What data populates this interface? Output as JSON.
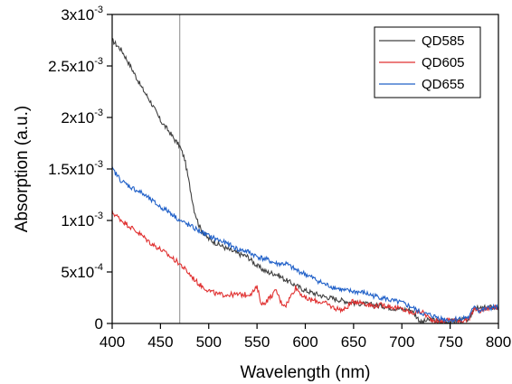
{
  "chart_data": {
    "type": "line",
    "title": "",
    "xlabel": "Wavelength (nm)",
    "ylabel": "Absorption (a.u.)",
    "xlim": [
      400,
      800
    ],
    "ylim": [
      0,
      0.003
    ],
    "xticks": [
      400,
      450,
      500,
      550,
      600,
      650,
      700,
      750,
      800
    ],
    "xtick_labels": [
      "400",
      "450",
      "500",
      "550",
      "600",
      "650",
      "700",
      "750",
      "800"
    ],
    "yticks": [
      0,
      0.0005,
      0.001,
      0.0015,
      0.002,
      0.0025,
      0.003
    ],
    "ytick_labels": [
      {
        "mantissa": "0",
        "exponent": ""
      },
      {
        "mantissa": "5x10",
        "exponent": "-4"
      },
      {
        "mantissa": "1x10",
        "exponent": "-3"
      },
      {
        "mantissa": "1.5x10",
        "exponent": "-3"
      },
      {
        "mantissa": "2x10",
        "exponent": "-3"
      },
      {
        "mantissa": "2.5x10",
        "exponent": "-3"
      },
      {
        "mantissa": "3x10",
        "exponent": "-3"
      }
    ],
    "grid": false,
    "legend_position": "top-right",
    "reference_line_x": 470,
    "series": [
      {
        "name": "QD585",
        "color": "#404040",
        "x": [
          400,
          410,
          420,
          430,
          440,
          450,
          460,
          465,
          470,
          475,
          480,
          485,
          490,
          495,
          500,
          510,
          520,
          530,
          540,
          550,
          560,
          570,
          580,
          590,
          600,
          610,
          620,
          630,
          640,
          650,
          660,
          670,
          680,
          690,
          700,
          710,
          720,
          730,
          740,
          750,
          760,
          770,
          775,
          780,
          790,
          800
        ],
        "y": [
          0.00275,
          0.00265,
          0.00248,
          0.0023,
          0.00215,
          0.00197,
          0.00185,
          0.00178,
          0.00172,
          0.0016,
          0.00135,
          0.0011,
          0.00095,
          0.00087,
          0.00082,
          0.00077,
          0.00072,
          0.00068,
          0.00065,
          0.00056,
          0.0005,
          0.00048,
          0.00042,
          0.00037,
          0.00032,
          0.00029,
          0.00026,
          0.00024,
          0.00022,
          0.0002,
          0.00019,
          0.00018,
          0.00017,
          0.00015,
          0.00014,
          0.00013,
          1e-05,
          4e-05,
          1e-05,
          2e-05,
          3e-05,
          4e-05,
          0.00016,
          0.00014,
          0.00016,
          0.00015
        ]
      },
      {
        "name": "QD605",
        "color": "#e03030",
        "x": [
          400,
          410,
          420,
          430,
          440,
          450,
          460,
          470,
          480,
          490,
          500,
          510,
          520,
          530,
          540,
          545,
          550,
          555,
          560,
          570,
          575,
          580,
          590,
          600,
          610,
          620,
          630,
          640,
          650,
          660,
          670,
          680,
          690,
          700,
          710,
          720,
          730,
          740,
          750,
          760,
          770,
          775,
          780,
          790,
          800
        ],
        "y": [
          0.00108,
          0.001,
          0.00093,
          0.00086,
          0.00078,
          0.00072,
          0.00065,
          0.00058,
          0.00048,
          0.00038,
          0.00032,
          0.00028,
          0.00028,
          0.00028,
          0.00028,
          0.0003,
          0.00035,
          0.00018,
          0.00022,
          0.00032,
          0.0002,
          0.00018,
          0.00035,
          0.00024,
          0.00022,
          0.0002,
          0.00015,
          0.00013,
          0.00022,
          0.0002,
          0.00017,
          0.00018,
          0.00016,
          0.00014,
          0.0001,
          0.00012,
          4e-05,
          2e-05,
          4e-05,
          3e-05,
          4e-05,
          0.00015,
          0.00012,
          0.00015,
          0.00016
        ]
      },
      {
        "name": "QD655",
        "color": "#2060c8",
        "x": [
          400,
          410,
          420,
          430,
          440,
          450,
          460,
          470,
          480,
          490,
          500,
          510,
          520,
          530,
          540,
          550,
          560,
          570,
          580,
          590,
          600,
          610,
          620,
          630,
          640,
          650,
          660,
          670,
          680,
          690,
          700,
          710,
          720,
          730,
          740,
          750,
          760,
          770,
          775,
          780,
          790,
          800
        ],
        "y": [
          0.0015,
          0.00138,
          0.00132,
          0.00127,
          0.0012,
          0.00113,
          0.00108,
          0.001,
          0.00095,
          0.0009,
          0.00085,
          0.00081,
          0.00077,
          0.00072,
          0.0007,
          0.00065,
          0.00062,
          0.00058,
          0.00058,
          0.00052,
          0.00048,
          0.00043,
          0.00038,
          0.00035,
          0.00032,
          0.00031,
          0.0003,
          0.00027,
          0.00025,
          0.00022,
          0.0002,
          0.00016,
          0.0001,
          8e-05,
          5e-05,
          3e-05,
          5e-05,
          6e-05,
          0.00018,
          0.00012,
          0.00015,
          0.00016
        ]
      }
    ]
  }
}
